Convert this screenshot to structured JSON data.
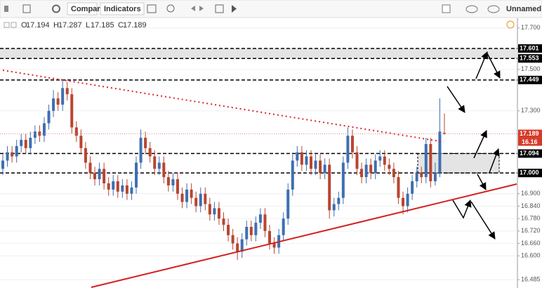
{
  "toolbar": {
    "compare": "Compare",
    "indicators": "Indicators",
    "layout": "Unnamed"
  },
  "chart_data": {
    "type": "candlestick",
    "ohlc_letters": [
      "O",
      "H",
      "L",
      "C"
    ],
    "up_color": "#3e6fb0",
    "down_color": "#b8452f",
    "ylim": [
      16.455,
      17.73
    ],
    "yticks": [
      {
        "value": 17.7,
        "label": "17.700"
      },
      {
        "value": 17.5,
        "label": "17.500"
      },
      {
        "value": 17.3,
        "label": "17.300"
      },
      {
        "value": 16.9,
        "label": "16.900"
      },
      {
        "value": 16.84,
        "label": "16.840"
      },
      {
        "value": 16.78,
        "label": "16.780"
      },
      {
        "value": 16.72,
        "label": "16.720"
      },
      {
        "value": 16.66,
        "label": "16.660"
      },
      {
        "value": 16.6,
        "label": "16.600"
      },
      16.485
    ],
    "grid": true,
    "levels": [
      17.601,
      17.553,
      17.449,
      17.094,
      {
        "value": 17,
        "label": "17.000"
      }
    ],
    "countdown": "16.16",
    "open": [
      17.02,
      17.06,
      17.1,
      17.08,
      17.13,
      17.16,
      17.12,
      17.17,
      17.2,
      17.18,
      17.24,
      17.3,
      17.36,
      17.33,
      17.41,
      17.38,
      17.22,
      17.18,
      17.12,
      17.05,
      17.0,
      16.97,
      17.02,
      16.95,
      16.92,
      16.96,
      16.91,
      16.94,
      16.9,
      16.93,
      17.05,
      17.17,
      17.12,
      17.08,
      17.02,
      17.05,
      16.98,
      16.94,
      16.97,
      16.9,
      16.86,
      16.92,
      16.88,
      16.84,
      16.9,
      16.85,
      16.8,
      16.83,
      16.78,
      16.75,
      16.7,
      16.66,
      16.62,
      16.68,
      16.74,
      16.7,
      16.76,
      16.8,
      16.72,
      16.66,
      16.64,
      16.7,
      16.78,
      16.92,
      17.06,
      17.1,
      17.04,
      17.08,
      17.02,
      17.06,
      17.0,
      17.04,
      16.82,
      16.85,
      16.88,
      17.05,
      17.18,
      17.1,
      17.02,
      16.98,
      17.04,
      17.0,
      17.06,
      17.08,
      17.04,
      17.02,
      16.98,
      16.88,
      16.84,
      16.9,
      16.96,
      17.0,
      16.98,
      17.14,
      16.96,
      17.0,
      17.194
    ],
    "high": [
      17.09,
      17.13,
      17.13,
      17.16,
      17.19,
      17.19,
      17.2,
      17.23,
      17.23,
      17.27,
      17.33,
      17.4,
      17.39,
      17.45,
      17.44,
      17.41,
      17.25,
      17.21,
      17.15,
      17.08,
      17.03,
      17.05,
      17.05,
      16.98,
      16.99,
      16.99,
      16.97,
      16.97,
      16.96,
      17.08,
      17.21,
      17.2,
      17.15,
      17.11,
      17.08,
      17.08,
      17.01,
      17.0,
      17.0,
      16.93,
      16.95,
      16.95,
      16.91,
      16.93,
      16.93,
      16.88,
      16.86,
      16.86,
      16.81,
      16.78,
      16.73,
      16.69,
      16.71,
      16.77,
      16.77,
      16.79,
      16.83,
      16.83,
      16.75,
      16.69,
      16.73,
      16.81,
      16.95,
      17.09,
      17.13,
      17.13,
      17.11,
      17.11,
      17.09,
      17.09,
      17.07,
      17.07,
      16.88,
      16.91,
      17.08,
      17.22,
      17.21,
      17.13,
      17.05,
      17.07,
      17.07,
      17.09,
      17.11,
      17.11,
      17.07,
      17.05,
      17.01,
      16.91,
      16.93,
      16.99,
      17.03,
      17.03,
      17.17,
      17.17,
      17.05,
      17.36,
      17.287
    ],
    "low": [
      16.99,
      17.03,
      17.05,
      17.05,
      17.1,
      17.09,
      17.09,
      17.14,
      17.15,
      17.15,
      17.21,
      17.27,
      17.3,
      17.3,
      17.35,
      17.19,
      17.15,
      17.09,
      17.02,
      16.97,
      16.94,
      16.94,
      16.92,
      16.89,
      16.89,
      16.88,
      16.88,
      16.87,
      16.87,
      16.9,
      17.02,
      17.09,
      17.05,
      16.99,
      16.99,
      16.95,
      16.91,
      16.91,
      16.87,
      16.83,
      16.83,
      16.85,
      16.81,
      16.81,
      16.82,
      16.77,
      16.77,
      16.75,
      16.72,
      16.67,
      16.63,
      16.58,
      16.59,
      16.65,
      16.67,
      16.67,
      16.73,
      16.69,
      16.63,
      16.61,
      16.61,
      16.67,
      16.75,
      16.89,
      17.03,
      17.01,
      17.01,
      16.99,
      16.99,
      16.97,
      16.97,
      16.78,
      16.79,
      16.82,
      16.85,
      17.02,
      17.07,
      16.99,
      16.95,
      16.95,
      16.97,
      16.97,
      17.03,
      17.01,
      16.99,
      16.95,
      16.85,
      16.8,
      16.81,
      16.87,
      16.93,
      16.95,
      16.95,
      16.93,
      16.94,
      16.98,
      17.185
    ],
    "close": [
      17.06,
      17.1,
      17.08,
      17.13,
      17.16,
      17.12,
      17.17,
      17.2,
      17.18,
      17.24,
      17.3,
      17.36,
      17.33,
      17.41,
      17.38,
      17.22,
      17.18,
      17.12,
      17.05,
      17.0,
      16.97,
      17.02,
      16.95,
      16.92,
      16.96,
      16.91,
      16.94,
      16.9,
      16.93,
      17.05,
      17.17,
      17.12,
      17.08,
      17.02,
      17.05,
      16.98,
      16.94,
      16.97,
      16.9,
      16.86,
      16.92,
      16.88,
      16.84,
      16.9,
      16.85,
      16.8,
      16.83,
      16.78,
      16.75,
      16.7,
      16.66,
      16.62,
      16.68,
      16.74,
      16.7,
      16.76,
      16.8,
      16.72,
      16.66,
      16.64,
      16.7,
      16.78,
      16.92,
      17.06,
      17.1,
      17.04,
      17.08,
      17.02,
      17.06,
      17.0,
      17.04,
      16.82,
      16.85,
      16.88,
      17.05,
      17.18,
      17.1,
      17.02,
      16.98,
      17.04,
      17.0,
      17.06,
      17.08,
      17.04,
      17.02,
      16.98,
      16.88,
      16.84,
      16.9,
      16.96,
      17.0,
      16.98,
      17.14,
      16.96,
      17.0,
      17.2,
      17.189
    ]
  }
}
